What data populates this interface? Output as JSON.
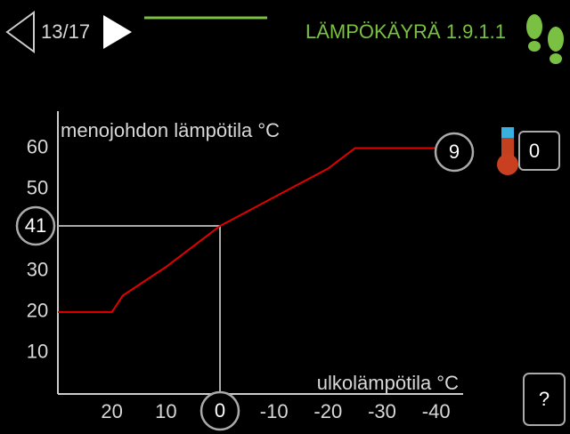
{
  "header": {
    "page": "13/17",
    "title": "LÄMPÖKÄYRÄ 1.9.1.1"
  },
  "chart_data": {
    "type": "line",
    "ylabel": "menojohdon lämpötila °C",
    "xlabel": "ulkolämpötila °C",
    "x": [
      30,
      20,
      18,
      10,
      0,
      -10,
      -20,
      -25,
      -40
    ],
    "values": [
      20,
      20,
      24,
      31,
      41,
      48,
      55,
      60,
      60
    ],
    "color": "#e00000",
    "xlim": [
      30,
      -45
    ],
    "ylim": [
      0,
      69
    ],
    "xticks": [
      20,
      10,
      -10,
      -20,
      -30,
      -40
    ],
    "yticks": [
      10,
      20,
      30,
      50,
      60
    ],
    "selected_x": 0,
    "selected_y": 41,
    "curve": 9,
    "offset": 0,
    "help": "?"
  }
}
